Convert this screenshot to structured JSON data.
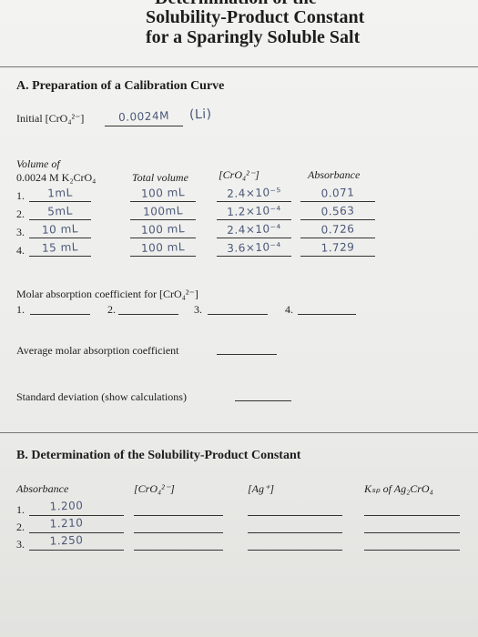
{
  "header": {
    "cut_title": "Determination of the",
    "title_line1": "Solubility-Product Constant",
    "title_line2": "for a Sparingly Soluble Salt"
  },
  "part_a": {
    "heading": "A. Preparation of a Calibration Curve",
    "initial_label": "Initial [CrO₄²⁻]",
    "initial_value": "0.0024M",
    "initial_note": "(Li)",
    "table": {
      "headers": [
        "Volume of",
        "0.0024 M K₂CrO₄",
        "Total volume",
        "[CrO₄²⁻]",
        "Absorbance"
      ],
      "rows": [
        [
          "1.",
          "1mL",
          "100 mL",
          "2.4×10⁻⁵",
          "0.071"
        ],
        [
          "2.",
          "5mL",
          "100mL",
          "1.2×10⁻⁴",
          "0.563"
        ],
        [
          "3.",
          "10 mL",
          "100 mL",
          "2.4×10⁻⁴",
          "0.726"
        ],
        [
          "4.",
          "15 mL",
          "100 mL",
          "3.6×10⁻⁴",
          "1.729"
        ]
      ]
    },
    "molar_label": "Molar absorption coefficient for [CrO₄²⁻]",
    "molar_items": [
      "1.",
      "2.",
      "3.",
      "4."
    ],
    "average_label": "Average molar absorption coefficient",
    "std_label": "Standard deviation (show calculations)"
  },
  "part_b": {
    "heading": "B. Determination of the Solubility-Product Constant",
    "headers": [
      "Absorbance",
      "[CrO₄²⁻]",
      "[Ag⁺]",
      "Kₛₚ of Ag₂CrO₄"
    ],
    "rows": [
      [
        "1.",
        "1.200"
      ],
      [
        "2.",
        "1.210"
      ],
      [
        "3.",
        "1.250"
      ]
    ]
  }
}
